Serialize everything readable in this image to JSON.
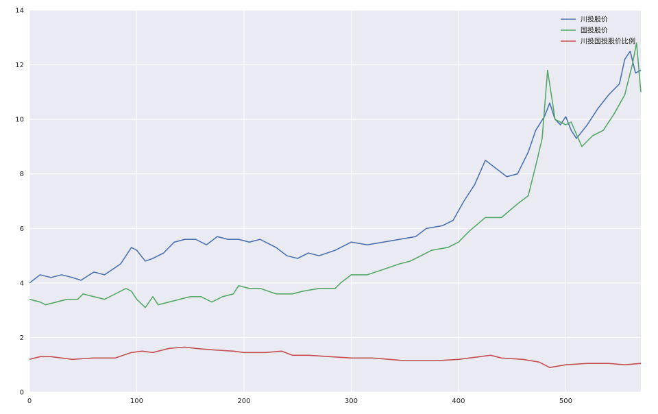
{
  "chart_data": {
    "type": "line",
    "title": "",
    "xlabel": "",
    "ylabel": "",
    "xlim": [
      0,
      570
    ],
    "ylim": [
      0,
      14
    ],
    "x_ticks": [
      0,
      100,
      200,
      300,
      400,
      500
    ],
    "y_ticks": [
      0,
      2,
      4,
      6,
      8,
      10,
      12,
      14
    ],
    "grid": true,
    "legend_position": "top-right",
    "background": "#EAEAF2",
    "series": [
      {
        "name": "川投股价",
        "color": "#4C72B0",
        "x": [
          0,
          10,
          20,
          30,
          40,
          48,
          60,
          70,
          85,
          95,
          100,
          108,
          115,
          125,
          135,
          145,
          155,
          165,
          175,
          185,
          195,
          205,
          215,
          230,
          240,
          250,
          260,
          270,
          285,
          300,
          315,
          330,
          345,
          360,
          370,
          385,
          395,
          405,
          415,
          425,
          435,
          445,
          455,
          465,
          472,
          480,
          485,
          490,
          495,
          500,
          505,
          510,
          520,
          530,
          540,
          550,
          555,
          560,
          565,
          570
        ],
        "y": [
          4.0,
          4.3,
          4.2,
          4.3,
          4.2,
          4.1,
          4.4,
          4.3,
          4.7,
          5.3,
          5.2,
          4.8,
          4.9,
          5.1,
          5.5,
          5.6,
          5.6,
          5.4,
          5.7,
          5.6,
          5.6,
          5.5,
          5.6,
          5.3,
          5.0,
          4.9,
          5.1,
          5.0,
          5.2,
          5.5,
          5.4,
          5.5,
          5.6,
          5.7,
          6.0,
          6.1,
          6.3,
          7.0,
          7.6,
          8.5,
          8.2,
          7.9,
          8.0,
          8.8,
          9.6,
          10.1,
          10.6,
          10.0,
          9.8,
          10.1,
          9.6,
          9.3,
          9.8,
          10.4,
          10.9,
          11.3,
          12.2,
          12.5,
          11.7,
          11.8
        ]
      },
      {
        "name": "国投股价",
        "color": "#55A868",
        "x": [
          0,
          10,
          15,
          25,
          35,
          45,
          50,
          60,
          70,
          80,
          90,
          95,
          100,
          108,
          115,
          120,
          130,
          140,
          150,
          160,
          170,
          180,
          190,
          195,
          205,
          215,
          230,
          245,
          255,
          270,
          285,
          290,
          300,
          315,
          330,
          345,
          355,
          365,
          375,
          390,
          400,
          410,
          425,
          440,
          455,
          465,
          472,
          478,
          483,
          490,
          500,
          505,
          515,
          525,
          535,
          545,
          555,
          562,
          566,
          570
        ],
        "y": [
          3.4,
          3.3,
          3.2,
          3.3,
          3.4,
          3.4,
          3.6,
          3.5,
          3.4,
          3.6,
          3.8,
          3.7,
          3.4,
          3.1,
          3.5,
          3.2,
          3.3,
          3.4,
          3.5,
          3.5,
          3.3,
          3.5,
          3.6,
          3.9,
          3.8,
          3.8,
          3.6,
          3.6,
          3.7,
          3.8,
          3.8,
          4.0,
          4.3,
          4.3,
          4.5,
          4.7,
          4.8,
          5.0,
          5.2,
          5.3,
          5.5,
          5.9,
          6.4,
          6.4,
          6.9,
          7.2,
          8.3,
          9.3,
          11.8,
          10.0,
          9.8,
          9.9,
          9.0,
          9.4,
          9.6,
          10.2,
          10.9,
          12.0,
          12.8,
          11.0
        ]
      },
      {
        "name": "川投国投股价比例",
        "color": "#C44E52",
        "x": [
          0,
          10,
          20,
          40,
          60,
          80,
          95,
          105,
          115,
          130,
          145,
          155,
          170,
          190,
          200,
          220,
          235,
          245,
          260,
          280,
          300,
          320,
          350,
          380,
          400,
          420,
          430,
          440,
          460,
          475,
          485,
          500,
          520,
          540,
          555,
          570
        ],
        "y": [
          1.2,
          1.3,
          1.3,
          1.2,
          1.25,
          1.25,
          1.45,
          1.5,
          1.45,
          1.6,
          1.65,
          1.6,
          1.55,
          1.5,
          1.45,
          1.45,
          1.5,
          1.35,
          1.35,
          1.3,
          1.25,
          1.25,
          1.15,
          1.15,
          1.2,
          1.3,
          1.35,
          1.25,
          1.2,
          1.1,
          0.9,
          1.0,
          1.05,
          1.05,
          1.0,
          1.05
        ]
      }
    ]
  }
}
